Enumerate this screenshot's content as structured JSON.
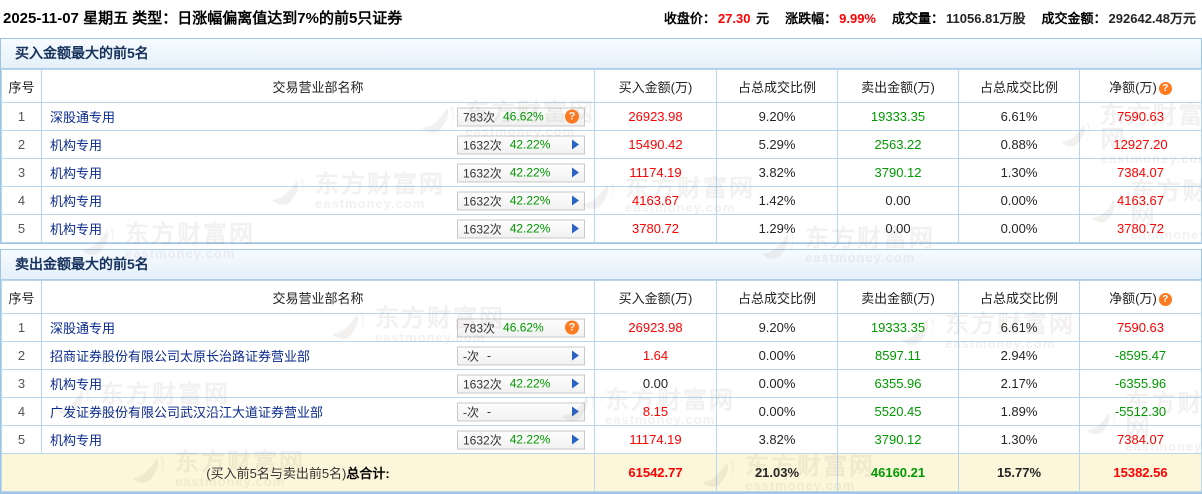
{
  "page": {
    "date": "2025-11-07 星期五",
    "type_label": "类型：",
    "type_value": "日涨幅偏离值达到7%的前5只证券",
    "stats": [
      {
        "label": "收盘价：",
        "value": "27.30",
        "suffix": " 元",
        "value_color": "red"
      },
      {
        "label": "涨跌幅：",
        "value": "9.99%",
        "suffix": "",
        "value_color": "red"
      },
      {
        "label": "成交量：",
        "value": "11056.81万股",
        "suffix": "",
        "value_color": "dark"
      },
      {
        "label": "成交金额：",
        "value": "292642.48万元",
        "suffix": "",
        "value_color": "dark"
      }
    ]
  },
  "colors": {
    "up_red": "#ff0000",
    "down_green": "#009900",
    "link_navy": "#0a2a8c",
    "border_blue": "#b9d6ec",
    "section_title": "#16325c",
    "total_row_bg": "#fcf7da",
    "help_icon_orange": "#ff7a1f",
    "arrow_blue": "#2b62c6"
  },
  "columns": [
    "序号",
    "交易营业部名称",
    "买入金额(万)",
    "占总成交比例",
    "卖出金额(万)",
    "占总成交比例",
    "净额(万)"
  ],
  "net_column_icon": "question-icon",
  "tables": [
    {
      "title": "买入金额最大的前5名",
      "rows": [
        {
          "no": "1",
          "name": "深股通专用",
          "badge": {
            "count": "783次",
            "pct": "46.62%",
            "icon": "question"
          },
          "cells": [
            {
              "text": "26923.98",
              "color": "red"
            },
            {
              "text": "9.20%",
              "color": "dark"
            },
            {
              "text": "19333.35",
              "color": "green"
            },
            {
              "text": "6.61%",
              "color": "dark"
            },
            {
              "text": "7590.63",
              "color": "red"
            }
          ]
        },
        {
          "no": "2",
          "name": "机构专用",
          "badge": {
            "count": "1632次",
            "pct": "42.22%",
            "icon": "arrow"
          },
          "cells": [
            {
              "text": "15490.42",
              "color": "red"
            },
            {
              "text": "5.29%",
              "color": "dark"
            },
            {
              "text": "2563.22",
              "color": "green"
            },
            {
              "text": "0.88%",
              "color": "dark"
            },
            {
              "text": "12927.20",
              "color": "red"
            }
          ]
        },
        {
          "no": "3",
          "name": "机构专用",
          "badge": {
            "count": "1632次",
            "pct": "42.22%",
            "icon": "arrow"
          },
          "cells": [
            {
              "text": "11174.19",
              "color": "red"
            },
            {
              "text": "3.82%",
              "color": "dark"
            },
            {
              "text": "3790.12",
              "color": "green"
            },
            {
              "text": "1.30%",
              "color": "dark"
            },
            {
              "text": "7384.07",
              "color": "red"
            }
          ]
        },
        {
          "no": "4",
          "name": "机构专用",
          "badge": {
            "count": "1632次",
            "pct": "42.22%",
            "icon": "arrow"
          },
          "cells": [
            {
              "text": "4163.67",
              "color": "red"
            },
            {
              "text": "1.42%",
              "color": "dark"
            },
            {
              "text": "0.00",
              "color": "dark"
            },
            {
              "text": "0.00%",
              "color": "dark"
            },
            {
              "text": "4163.67",
              "color": "red"
            }
          ]
        },
        {
          "no": "5",
          "name": "机构专用",
          "badge": {
            "count": "1632次",
            "pct": "42.22%",
            "icon": "arrow"
          },
          "cells": [
            {
              "text": "3780.72",
              "color": "red"
            },
            {
              "text": "1.29%",
              "color": "dark"
            },
            {
              "text": "0.00",
              "color": "dark"
            },
            {
              "text": "0.00%",
              "color": "dark"
            },
            {
              "text": "3780.72",
              "color": "red"
            }
          ]
        }
      ]
    },
    {
      "title": "卖出金额最大的前5名",
      "rows": [
        {
          "no": "1",
          "name": "深股通专用",
          "badge": {
            "count": "783次",
            "pct": "46.62%",
            "icon": "question"
          },
          "cells": [
            {
              "text": "26923.98",
              "color": "red"
            },
            {
              "text": "9.20%",
              "color": "dark"
            },
            {
              "text": "19333.35",
              "color": "green"
            },
            {
              "text": "6.61%",
              "color": "dark"
            },
            {
              "text": "7590.63",
              "color": "red"
            }
          ]
        },
        {
          "no": "2",
          "name": "招商证券股份有限公司太原长治路证券营业部",
          "badge": {
            "count": "-次",
            "pct": "-",
            "icon": "arrow"
          },
          "cells": [
            {
              "text": "1.64",
              "color": "red"
            },
            {
              "text": "0.00%",
              "color": "dark"
            },
            {
              "text": "8597.11",
              "color": "green"
            },
            {
              "text": "2.94%",
              "color": "dark"
            },
            {
              "text": "-8595.47",
              "color": "green"
            }
          ]
        },
        {
          "no": "3",
          "name": "机构专用",
          "badge": {
            "count": "1632次",
            "pct": "42.22%",
            "icon": "arrow"
          },
          "cells": [
            {
              "text": "0.00",
              "color": "dark"
            },
            {
              "text": "0.00%",
              "color": "dark"
            },
            {
              "text": "6355.96",
              "color": "green"
            },
            {
              "text": "2.17%",
              "color": "dark"
            },
            {
              "text": "-6355.96",
              "color": "green"
            }
          ]
        },
        {
          "no": "4",
          "name": "广发证券股份有限公司武汉沿江大道证券营业部",
          "badge": {
            "count": "-次",
            "pct": "-",
            "icon": "arrow"
          },
          "cells": [
            {
              "text": "8.15",
              "color": "red"
            },
            {
              "text": "0.00%",
              "color": "dark"
            },
            {
              "text": "5520.45",
              "color": "green"
            },
            {
              "text": "1.89%",
              "color": "dark"
            },
            {
              "text": "-5512.30",
              "color": "green"
            }
          ]
        },
        {
          "no": "5",
          "name": "机构专用",
          "badge": {
            "count": "1632次",
            "pct": "42.22%",
            "icon": "arrow"
          },
          "cells": [
            {
              "text": "11174.19",
              "color": "red"
            },
            {
              "text": "3.82%",
              "color": "dark"
            },
            {
              "text": "3790.12",
              "color": "green"
            },
            {
              "text": "1.30%",
              "color": "dark"
            },
            {
              "text": "7384.07",
              "color": "red"
            }
          ]
        }
      ]
    }
  ],
  "grand_total": {
    "label_prefix": "(买入前5名与卖出前5名)",
    "label_bold": "总合计:",
    "values": [
      {
        "text": "61542.77",
        "color": "red"
      },
      {
        "text": "21.03%",
        "color": "dark"
      },
      {
        "text": "46160.21",
        "color": "green"
      },
      {
        "text": "15.77%",
        "color": "dark"
      },
      {
        "text": "15382.56",
        "color": "red"
      }
    ]
  },
  "watermark": {
    "text": "东方财富网",
    "subtext": "eastmoney.com"
  }
}
